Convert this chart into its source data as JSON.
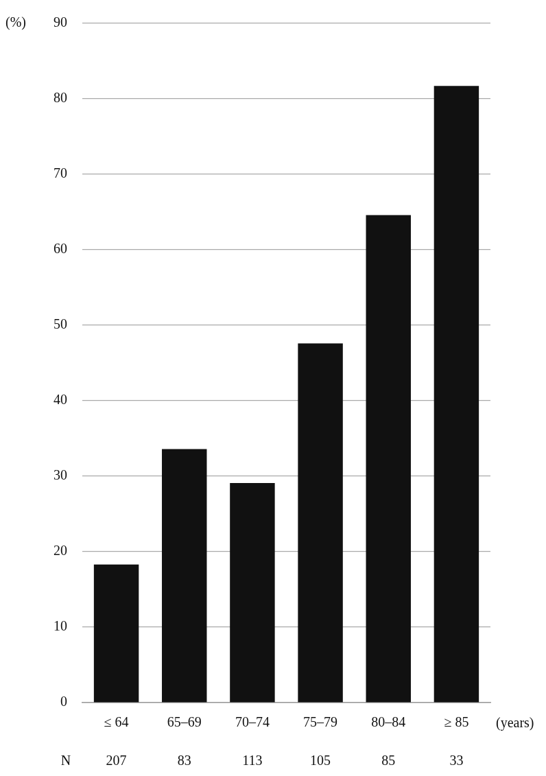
{
  "chart_data": {
    "type": "bar",
    "categories": [
      "≤ 64",
      "65–69",
      "70–74",
      "75–79",
      "80–84",
      "≥ 85"
    ],
    "values": [
      18.3,
      33.6,
      29.1,
      47.6,
      64.6,
      81.7
    ],
    "color": "#111111",
    "ylabel": "(%)",
    "xlabel": "(years)",
    "ylim": [
      0,
      90
    ],
    "yticks": [
      0,
      10,
      20,
      30,
      40,
      50,
      60,
      70,
      80,
      90
    ],
    "grid": "y",
    "legend": false,
    "annotations": [
      "N",
      "207",
      "83",
      "113",
      "105",
      "85",
      "33"
    ]
  }
}
